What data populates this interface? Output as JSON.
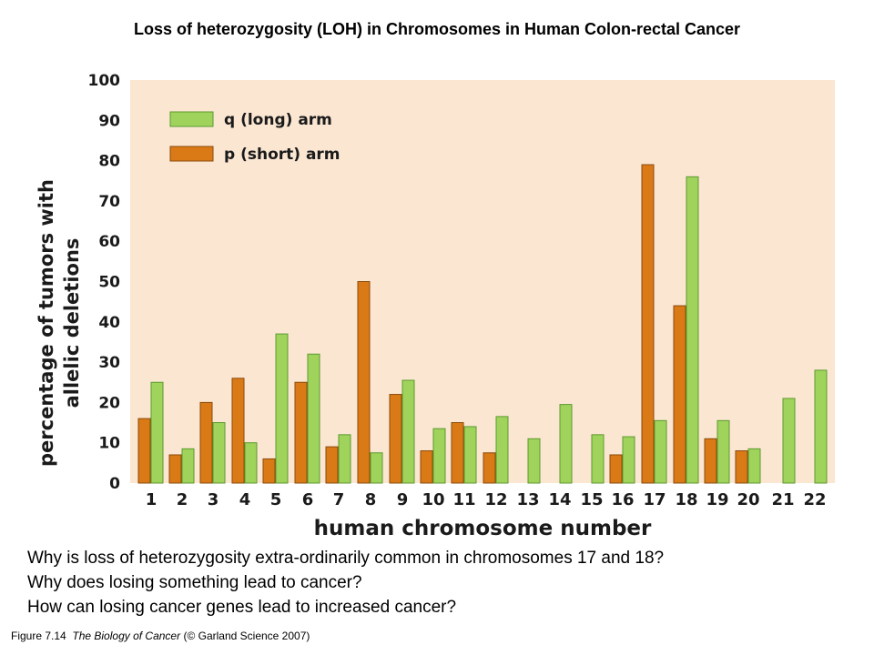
{
  "slide": {
    "title": "Loss of heterozygosity (LOH) in Chromosomes in Human Colon-rectal Cancer",
    "questions": [
      "Why is loss of heterozygosity extra-ordinarily common in chromosomes 17 and 18?",
      "Why does losing something lead to cancer?",
      "How can losing cancer genes lead to increased cancer?"
    ],
    "caption": {
      "figure": "Figure 7.14",
      "book": "The Biology of Cancer",
      "credit": "(© Garland Science 2007)"
    }
  },
  "colors": {
    "plot_background": "#fbe6d2",
    "q_arm": "#9fd35c",
    "q_arm_edge": "#5c9a2e",
    "p_arm": "#d97a16",
    "p_arm_edge": "#8a4a0c"
  },
  "chart_data": {
    "type": "bar",
    "xlabel": "human chromosome number",
    "ylabel": [
      "percentage of tumors with",
      "allelic deletions"
    ],
    "ylim": [
      0,
      100
    ],
    "yticks": [
      0,
      10,
      20,
      30,
      40,
      50,
      60,
      70,
      80,
      90,
      100
    ],
    "grid": false,
    "legend_position": "top-left",
    "categories": [
      "1",
      "2",
      "3",
      "4",
      "5",
      "6",
      "7",
      "8",
      "9",
      "10",
      "11",
      "12",
      "13",
      "14",
      "15",
      "16",
      "17",
      "18",
      "19",
      "20",
      "21",
      "22"
    ],
    "series": [
      {
        "name": "p (short) arm",
        "values": [
          16,
          7,
          20,
          26,
          6,
          25,
          9,
          50,
          22,
          8,
          15,
          7.5,
          null,
          null,
          null,
          7,
          79,
          44,
          11,
          8,
          null,
          null
        ]
      },
      {
        "name": "q (long) arm",
        "values": [
          25,
          8.5,
          15,
          10,
          37,
          32,
          12,
          7.5,
          25.5,
          13.5,
          14,
          16.5,
          11,
          19.5,
          12,
          11.5,
          15.5,
          76,
          15.5,
          8.5,
          21,
          28
        ]
      }
    ]
  }
}
